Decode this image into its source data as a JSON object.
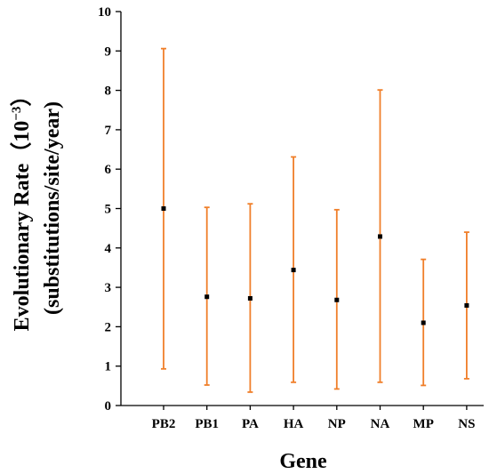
{
  "chart_data": {
    "type": "errorbar",
    "xlabel": "Gene",
    "ylabel_line1": "Evolutionary Rate（10",
    "ylabel_exponent": "−3",
    "ylabel_close": "）",
    "ylabel_line2": "(substitutions/site/year)",
    "ylim": [
      0,
      10
    ],
    "yticks": [
      0,
      1,
      2,
      3,
      4,
      5,
      6,
      7,
      8,
      9,
      10
    ],
    "categories": [
      "PB2",
      "PB1",
      "PA",
      "HA",
      "NP",
      "NA",
      "MP",
      "NS"
    ],
    "series": [
      {
        "values": [
          5.0,
          2.76,
          2.72,
          3.44,
          2.68,
          4.29,
          2.1,
          2.54
        ],
        "lower": [
          0.93,
          0.52,
          0.34,
          0.59,
          0.42,
          0.59,
          0.51,
          0.68
        ],
        "upper": [
          9.06,
          5.03,
          5.12,
          6.31,
          4.97,
          8.01,
          3.71,
          4.4
        ]
      }
    ],
    "colors": {
      "errorbar": "#f07f2a",
      "point": "#000000"
    },
    "grid": false
  }
}
